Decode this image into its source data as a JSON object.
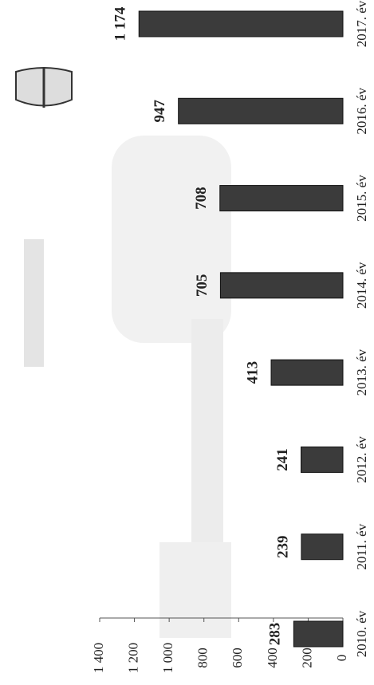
{
  "chart_data": {
    "type": "bar",
    "orientation": "horizontal",
    "categories": [
      "2010. év",
      "2011. év",
      "2012. év",
      "2013. év",
      "2014. év",
      "2015. év",
      "2016. év",
      "2017. év"
    ],
    "values": [
      283,
      239,
      241,
      413,
      705,
      708,
      947,
      1174
    ],
    "value_labels": [
      "283",
      "239",
      "241",
      "413",
      "705",
      "708",
      "947",
      "1 174"
    ],
    "color": "#3b3b3b",
    "ylim": [
      0,
      1400
    ],
    "yticks": [
      0,
      200,
      400,
      600,
      800,
      {
        "value": 1000,
        "label": "1 000"
      },
      {
        "value": 1200,
        "label": "1 200"
      },
      {
        "value": 1400,
        "label": "1 400"
      }
    ]
  }
}
